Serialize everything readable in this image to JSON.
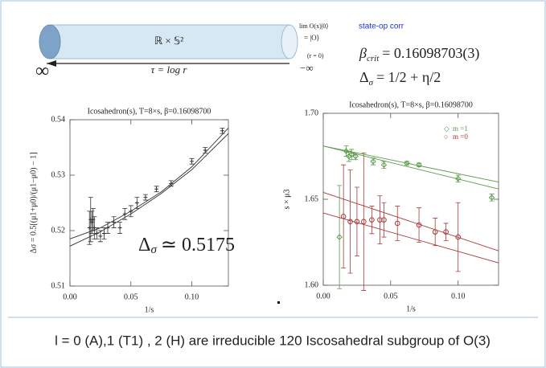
{
  "slide": {
    "cylinder_label": "ℝ × 𝕊²",
    "tau_label": "τ = log r",
    "infinity": "∞",
    "limit_label": "lim O(x)|0⟩",
    "limit_eq": "= |O⟩",
    "r_zero": "(r = 0)",
    "minus_infinity": "−∞",
    "state_op": "state-op corr",
    "beta_sym": "β",
    "beta_sub": "crit",
    "beta_val": "= 0.16098703(3)",
    "delta_sym": "Δ",
    "delta_sub": "σ",
    "delta_val": "= 1/2 + η/2",
    "footer": "l = 0 (A),1 (T1) , 2 (H) are  irreducible 120 Iscosahedral subgroup of O(3)"
  },
  "chart_data": [
    {
      "type": "scatter",
      "title": "Icosahedron(s), T=8×s, β=0.16098700",
      "x_label": "1/s",
      "y_label": "Δσ = 0.5[(μ1+μ0)/(μ1−μ0) − 1]",
      "annotation_sym": "Δ",
      "annotation_sub": "σ",
      "annotation_val": "≃ 0.5175",
      "xlim": [
        0,
        0.13
      ],
      "ylim": [
        0.51,
        0.54
      ],
      "xticks": [
        {
          "value": 0,
          "label": "0.00"
        },
        0.05,
        {
          "value": 0.1,
          "label": "0.10"
        }
      ],
      "yticks": [
        0.51,
        0.52,
        0.53,
        0.54
      ],
      "series": [
        {
          "color": "#333333",
          "marker": "plus",
          "x": [
            0.016,
            0.017,
            0.018,
            0.019,
            0.02,
            0.022,
            0.025,
            0.028,
            0.031,
            0.036,
            0.041,
            0.045,
            0.05,
            0.055,
            0.062,
            0.071,
            0.083,
            0.1,
            0.111,
            0.125
          ],
          "values": [
            0.5205,
            0.522,
            0.5215,
            0.522,
            0.5205,
            0.5195,
            0.519,
            0.5195,
            0.5205,
            0.5215,
            0.5205,
            0.523,
            0.5235,
            0.525,
            0.526,
            0.5275,
            0.5285,
            0.5325,
            0.5345,
            0.538
          ],
          "errors": [
            0.003,
            0.004,
            0.002,
            0.002,
            0.002,
            0.001,
            0.001,
            0.001,
            0.001,
            0.001,
            0.001,
            0.001,
            0.001,
            0.001,
            0.0005,
            0.0005,
            0.0005,
            0.0005,
            0.0005,
            0.0005
          ]
        },
        {
          "color": "#333333",
          "marker": "line",
          "x": [
            0,
            0.025,
            0.05,
            0.075,
            0.1,
            0.13
          ],
          "values": [
            0.5185,
            0.5205,
            0.5235,
            0.527,
            0.5315,
            0.5385
          ]
        },
        {
          "color": "#333333",
          "marker": "line",
          "x": [
            0,
            0.025,
            0.05,
            0.075,
            0.1,
            0.13
          ],
          "values": [
            0.5172,
            0.5198,
            0.523,
            0.5267,
            0.531,
            0.5375
          ]
        }
      ]
    },
    {
      "type": "scatter",
      "title": "Icosahedron(s), T=8×s, β=0.16098700",
      "x_label": "1/s",
      "y_label": "s × μ3",
      "xlim": [
        0,
        0.13
      ],
      "ylim": [
        1.6,
        1.7
      ],
      "xticks": [
        {
          "value": 0,
          "label": "0.00"
        },
        0.05,
        {
          "value": 0.1,
          "label": "0.10"
        }
      ],
      "yticks": [
        {
          "value": 1.6,
          "label": "1.60"
        },
        1.65,
        {
          "value": 1.7,
          "label": "1.70"
        }
      ],
      "series": [
        {
          "name": "m =1",
          "legend_marker": "◇",
          "color": "#5a9a4a",
          "marker": "diamond",
          "x": [
            0.012,
            0.017,
            0.019,
            0.021,
            0.024,
            0.037,
            0.045,
            0.062,
            0.071,
            0.1,
            0.125
          ],
          "values": [
            1.628,
            1.678,
            1.675,
            1.676,
            1.675,
            1.672,
            1.67,
            1.671,
            1.67,
            1.662,
            1.651
          ],
          "errors": [
            0.03,
            0.003,
            0.003,
            0.003,
            0.002,
            0.002,
            0.002,
            0.001,
            0.001,
            0.002,
            0.002
          ]
        },
        {
          "name": "m =0",
          "legend_marker": "○",
          "color": "#a83a3a",
          "marker": "circle",
          "x": [
            0.015,
            0.02,
            0.025,
            0.03,
            0.036,
            0.042,
            0.045,
            0.055,
            0.071,
            0.083,
            0.091,
            0.1
          ],
          "values": [
            1.64,
            1.637,
            1.637,
            1.637,
            1.638,
            1.638,
            1.638,
            1.636,
            1.635,
            1.631,
            1.631,
            1.628
          ],
          "errors": [
            0.03,
            0.03,
            0.02,
            0.04,
            0.008,
            0.014,
            0.01,
            0.01,
            0.01,
            0.008,
            0.005,
            0.02
          ]
        },
        {
          "color": "#5a9a4a",
          "marker": "line",
          "x": [
            0,
            0.13
          ],
          "values": [
            1.681,
            1.66
          ]
        },
        {
          "color": "#5a9a4a",
          "marker": "line",
          "x": [
            0,
            0.13
          ],
          "values": [
            1.681,
            1.656
          ]
        },
        {
          "color": "#a83a3a",
          "marker": "line",
          "x": [
            0,
            0.13
          ],
          "values": [
            1.654,
            1.62
          ]
        },
        {
          "color": "#a83a3a",
          "marker": "line",
          "x": [
            0,
            0.13
          ],
          "values": [
            1.642,
            1.613
          ]
        }
      ]
    }
  ]
}
